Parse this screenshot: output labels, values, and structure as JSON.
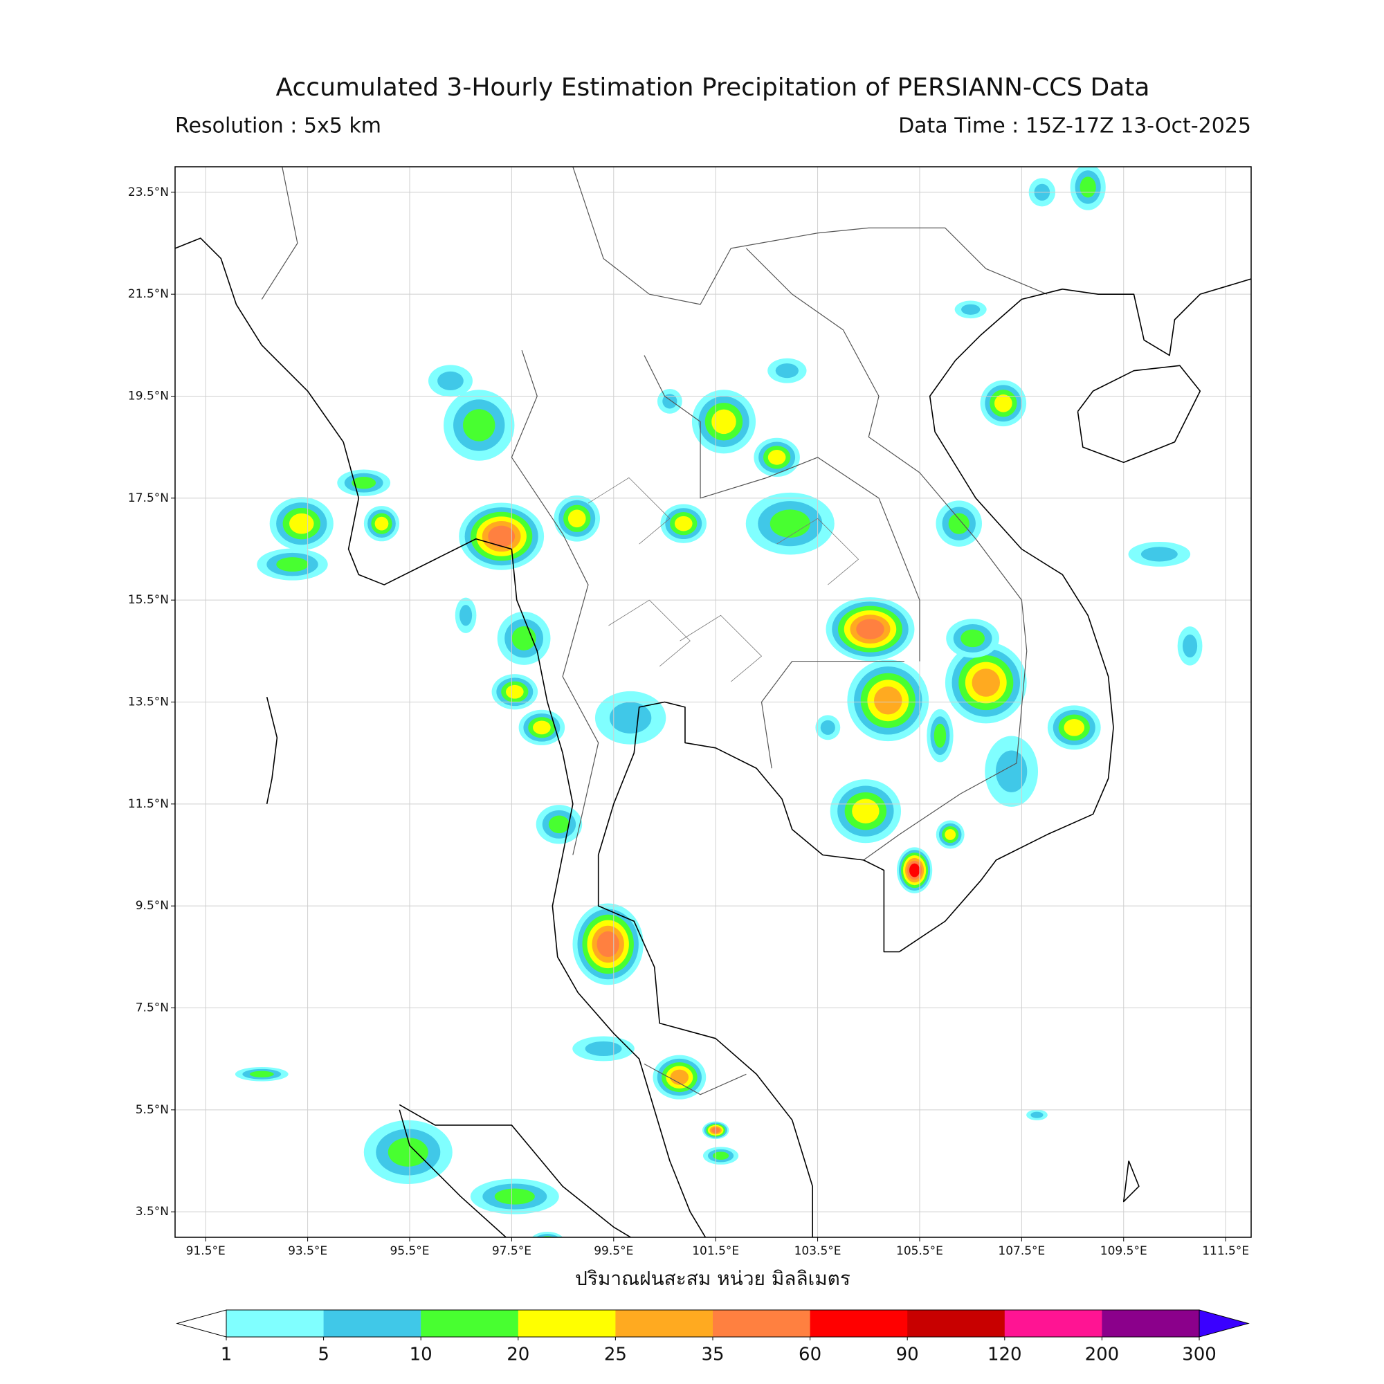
{
  "header": {
    "title": "Accumulated 3-Hourly Estimation Precipitation of PERSIANN-CCS Data",
    "resolution": "Resolution : 5x5 km",
    "data_time": "Data Time : 15Z-17Z 13-Oct-2025"
  },
  "map": {
    "xlim": [
      90.9,
      112.0
    ],
    "ylim": [
      3.0,
      24.0
    ],
    "grid": true,
    "xticks": [
      {
        "value": 91.5,
        "label": "91.5°E"
      },
      {
        "value": 93.5,
        "label": "93.5°E"
      },
      {
        "value": 95.5,
        "label": "95.5°E"
      },
      {
        "value": 97.5,
        "label": "97.5°E"
      },
      {
        "value": 99.5,
        "label": "99.5°E"
      },
      {
        "value": 101.5,
        "label": "101.5°E"
      },
      {
        "value": 103.5,
        "label": "103.5°E"
      },
      {
        "value": 105.5,
        "label": "105.5°E"
      },
      {
        "value": 107.5,
        "label": "107.5°E"
      },
      {
        "value": 109.5,
        "label": "109.5°E"
      },
      {
        "value": 111.5,
        "label": "111.5°E"
      }
    ],
    "yticks": [
      {
        "value": 23.5,
        "label": "23.5°N"
      },
      {
        "value": 21.5,
        "label": "21.5°N"
      },
      {
        "value": 19.5,
        "label": "19.5°N"
      },
      {
        "value": 17.5,
        "label": "17.5°N"
      },
      {
        "value": 15.5,
        "label": "15.5°N"
      },
      {
        "value": 13.5,
        "label": "13.5°N"
      },
      {
        "value": 11.5,
        "label": "11.5°N"
      },
      {
        "value": 9.5,
        "label": "9.5°N"
      },
      {
        "value": 7.5,
        "label": "7.5°N"
      },
      {
        "value": 5.5,
        "label": "5.5°N"
      },
      {
        "value": 3.5,
        "label": "3.5°N"
      }
    ]
  },
  "colorbar": {
    "label": "ปริมาณฝนสะสม หน่วย มิลลิเมตร",
    "ticks": [
      1,
      5,
      10,
      20,
      25,
      35,
      60,
      90,
      120,
      200,
      300
    ],
    "colors": [
      "#80ffff",
      "#40c8e8",
      "#48ff30",
      "#ffff00",
      "#ffaa20",
      "#ff8040",
      "#ff0000",
      "#c80000",
      "#ff1493",
      "#8b008b"
    ],
    "under": "#ffffff",
    "over": "#3a00ff"
  }
}
